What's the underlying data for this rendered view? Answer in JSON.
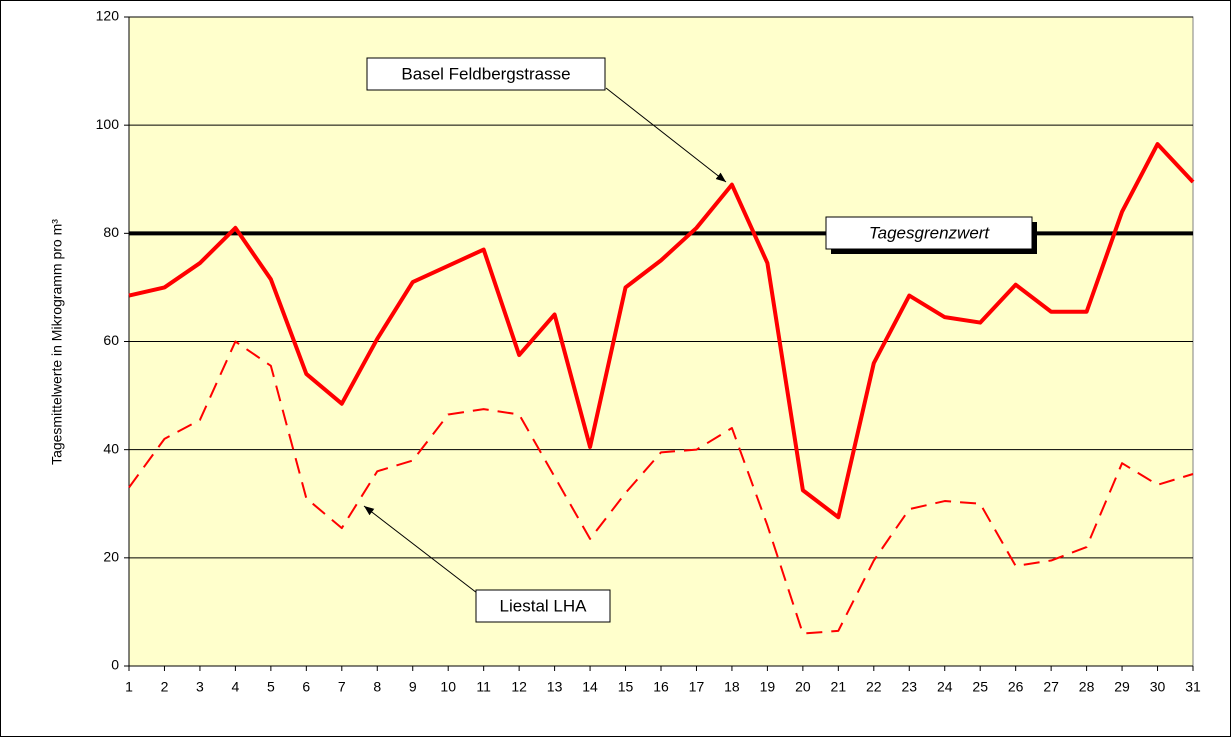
{
  "chart_data": {
    "type": "line",
    "y_label": "Tagesmittelwerte in Mikrogramm pro m³",
    "x": [
      1,
      2,
      3,
      4,
      5,
      6,
      7,
      8,
      9,
      10,
      11,
      12,
      13,
      14,
      15,
      16,
      17,
      18,
      19,
      20,
      21,
      22,
      23,
      24,
      25,
      26,
      27,
      28,
      29,
      30,
      31
    ],
    "xlim": [
      1,
      31
    ],
    "xticks": [
      1,
      2,
      3,
      4,
      5,
      6,
      7,
      8,
      9,
      10,
      11,
      12,
      13,
      14,
      15,
      16,
      17,
      18,
      19,
      20,
      21,
      22,
      23,
      24,
      25,
      26,
      27,
      28,
      29,
      30,
      31
    ],
    "ylim": [
      0,
      120
    ],
    "yticks": [
      0,
      20,
      40,
      60,
      80,
      100,
      120
    ],
    "grid": true,
    "background": "#ffffcc",
    "series": [
      {
        "name": "Basel Feldbergstrasse",
        "color": "#ff0000",
        "line_style": "solid",
        "values": [
          68.5,
          70,
          74.5,
          81,
          71.5,
          54,
          48.5,
          60.5,
          71,
          74,
          77,
          57.5,
          65,
          40.5,
          70,
          75,
          81,
          89,
          74.5,
          32.5,
          27.5,
          56,
          68.5,
          64.5,
          63.5,
          70.5,
          65.5,
          65.5,
          84,
          96.5,
          89.5
        ]
      },
      {
        "name": "Liestal LHA",
        "color": "#ff0000",
        "line_style": "dashed",
        "values": [
          33,
          42,
          45.5,
          60,
          55.5,
          31,
          25.5,
          36,
          38,
          46.5,
          47.5,
          46.5,
          35,
          23.5,
          32,
          39.5,
          40,
          44,
          26,
          6,
          6.5,
          19.5,
          29,
          30.5,
          30,
          18.5,
          19.5,
          22,
          37.5,
          33.5,
          35.5
        ]
      }
    ],
    "threshold": {
      "value": 80,
      "label": "Tagesgrenzwert",
      "color": "#000000"
    }
  }
}
